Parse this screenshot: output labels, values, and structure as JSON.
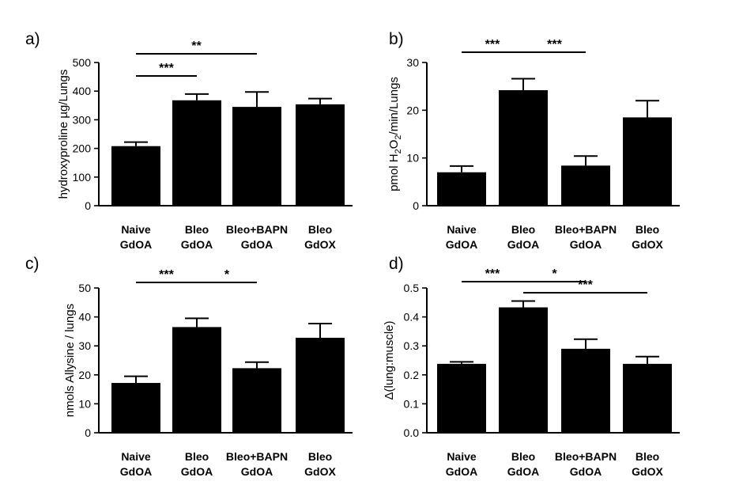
{
  "chart_data": [
    {
      "panel": "a)",
      "type": "bar",
      "categories": [
        [
          "Naive",
          "GdOA"
        ],
        [
          "Bleo",
          "GdOA"
        ],
        [
          "Bleo+BAPN",
          "GdOA"
        ],
        [
          "Bleo",
          "GdOX"
        ]
      ],
      "values": [
        208,
        368,
        345,
        354
      ],
      "errors": [
        14,
        22,
        52,
        20
      ],
      "ylabel": "hydroxyproline µg/Lungs",
      "ylim": [
        0,
        500
      ],
      "yticks": [
        "0",
        "100",
        "200",
        "300",
        "400",
        "500"
      ],
      "significance": [
        {
          "from": 0,
          "to": 1,
          "label": "***",
          "level": 1
        },
        {
          "from": 0,
          "to": 2,
          "label": "**",
          "level": 2
        }
      ]
    },
    {
      "panel": "b)",
      "type": "bar",
      "categories": [
        [
          "Naive",
          "GdOA"
        ],
        [
          "Bleo",
          "GdOA"
        ],
        [
          "Bleo+BAPN",
          "GdOA"
        ],
        [
          "Bleo",
          "GdOX"
        ]
      ],
      "values": [
        7.0,
        24.2,
        8.4,
        18.5
      ],
      "errors": [
        1.3,
        2.4,
        2.0,
        3.5
      ],
      "ylabel_parts": [
        "pmol H",
        "2",
        "O",
        "2",
        "/min/Lungs"
      ],
      "ylim": [
        0,
        30
      ],
      "yticks": [
        "0",
        "10",
        "20",
        "30"
      ],
      "significance": [
        {
          "from": 0,
          "to": 1,
          "label": "***",
          "level": 1
        },
        {
          "from": 1,
          "to": 2,
          "label": "***",
          "level": 1
        }
      ]
    },
    {
      "panel": "c)",
      "type": "bar",
      "categories": [
        [
          "Naive",
          "GdOA"
        ],
        [
          "Bleo",
          "GdOA"
        ],
        [
          "Bleo+BAPN",
          "GdOA"
        ],
        [
          "Bleo",
          "GdOX"
        ]
      ],
      "values": [
        17.2,
        36.5,
        22.3,
        32.8
      ],
      "errors": [
        2.3,
        3.0,
        2.1,
        4.9
      ],
      "ylabel": "nmols Allysine / lungs",
      "ylim": [
        0,
        50
      ],
      "yticks": [
        "0",
        "10",
        "20",
        "30",
        "40",
        "50"
      ],
      "significance": [
        {
          "from": 0,
          "to": 1,
          "label": "***",
          "level": 1
        },
        {
          "from": 1,
          "to": 2,
          "label": "*",
          "level": 1
        }
      ]
    },
    {
      "panel": "d)",
      "type": "bar",
      "categories": [
        [
          "Naive",
          "GdOA"
        ],
        [
          "Bleo",
          "GdOA"
        ],
        [
          "Bleo+BAPN",
          "GdOA"
        ],
        [
          "Bleo",
          "GdOX"
        ]
      ],
      "values": [
        0.238,
        0.433,
        0.29,
        0.238
      ],
      "errors": [
        0.007,
        0.022,
        0.033,
        0.025
      ],
      "ylabel": "Δ(lung:muscle)",
      "ylim": [
        0,
        0.5
      ],
      "yticks": [
        "0.0",
        "0.1",
        "0.2",
        "0.3",
        "0.4",
        "0.5"
      ],
      "significance": [
        {
          "from": 0,
          "to": 1,
          "label": "***",
          "level": 1
        },
        {
          "from": 1,
          "to": 2,
          "label": "*",
          "level": 1
        },
        {
          "from": 1,
          "to": 3,
          "label": "***",
          "level": 2
        }
      ]
    }
  ]
}
